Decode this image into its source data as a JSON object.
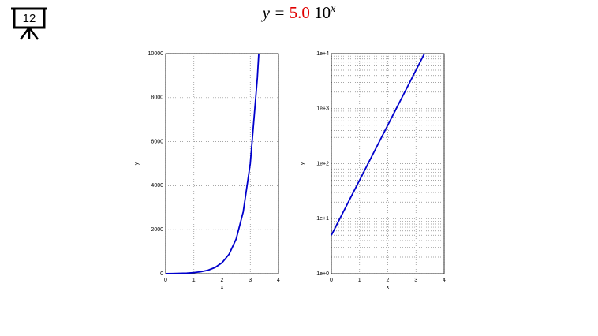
{
  "slide_number": "12",
  "title": {
    "lhs": "y =",
    "coefficient": "5.0",
    "base": "10",
    "exponent": "x"
  },
  "chart_data": [
    {
      "type": "line",
      "xlabel": "x",
      "ylabel": "y",
      "grid": true,
      "log_y": false,
      "xlim": [
        0,
        4
      ],
      "xticks": [
        0,
        1,
        2,
        3,
        4
      ],
      "ylim": [
        0,
        10000
      ],
      "yticks": [
        0,
        2000,
        4000,
        6000,
        8000,
        10000
      ],
      "x": [
        0,
        0.25,
        0.5,
        0.75,
        1,
        1.25,
        1.5,
        1.75,
        2,
        2.25,
        2.5,
        2.75,
        3,
        3.25,
        3.3
      ],
      "series": [
        {
          "color": "#0000cc",
          "values": [
            5,
            8.891,
            15.81,
            28.12,
            50,
            88.91,
            158.1,
            281.2,
            500,
            889.1,
            1581,
            2812,
            5000,
            8891,
            9976
          ]
        }
      ]
    },
    {
      "type": "line",
      "xlabel": "x",
      "ylabel": "y",
      "grid": true,
      "log_y": true,
      "xlim": [
        0,
        4
      ],
      "xticks": [
        0,
        1,
        2,
        3,
        4
      ],
      "ylim": [
        1,
        10000
      ],
      "yticks": [
        {
          "value": 1,
          "label": "1e+0"
        },
        {
          "value": 10,
          "label": "1e+1"
        },
        {
          "value": 100,
          "label": "1e+2"
        },
        {
          "value": 1000,
          "label": "1e+3"
        },
        {
          "value": 10000,
          "label": "1e+4"
        }
      ],
      "x": [
        0,
        0.25,
        0.5,
        0.75,
        1,
        1.25,
        1.5,
        1.75,
        2,
        2.25,
        2.5,
        2.75,
        3,
        3.25,
        3.3
      ],
      "series": [
        {
          "color": "#0000cc",
          "values": [
            5,
            8.891,
            15.81,
            28.12,
            50,
            88.91,
            158.1,
            281.2,
            500,
            889.1,
            1581,
            2812,
            5000,
            8891,
            9976
          ]
        }
      ]
    }
  ]
}
